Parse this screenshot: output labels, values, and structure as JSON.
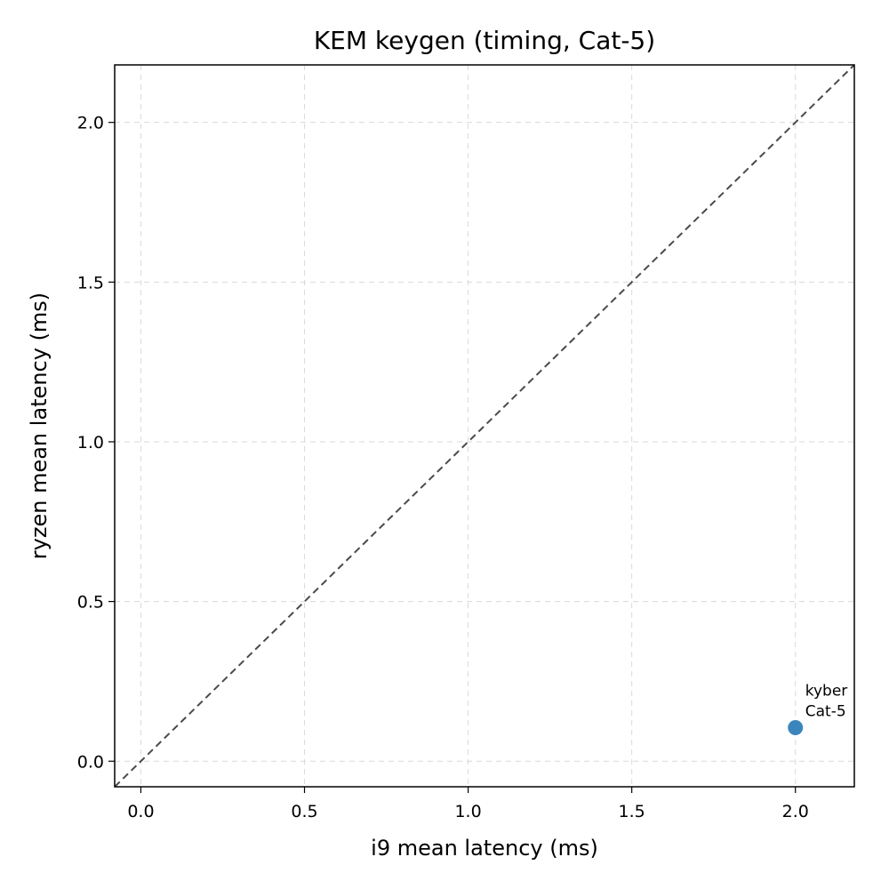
{
  "chart_data": {
    "type": "scatter",
    "title": "KEM keygen (timing, Cat-5)",
    "xlabel": "i9 mean latency (ms)",
    "ylabel": "ryzen mean latency (ms)",
    "xlim": [
      -0.08,
      2.18
    ],
    "ylim": [
      -0.08,
      2.18
    ],
    "xticks": [
      0.0,
      0.5,
      1.0,
      1.5,
      2.0
    ],
    "yticks": [
      0.0,
      0.5,
      1.0,
      1.5,
      2.0
    ],
    "xtick_labels": [
      "0.0",
      "0.5",
      "1.0",
      "1.5",
      "2.0"
    ],
    "ytick_labels": [
      "0.0",
      "0.5",
      "1.0",
      "1.5",
      "2.0"
    ],
    "grid": true,
    "reference_line": "y = x",
    "points": [
      {
        "x": 2.0,
        "y": 0.105,
        "label_line1": "kyber",
        "label_line2": "Cat-5",
        "color": "#2f7fb8"
      }
    ]
  }
}
